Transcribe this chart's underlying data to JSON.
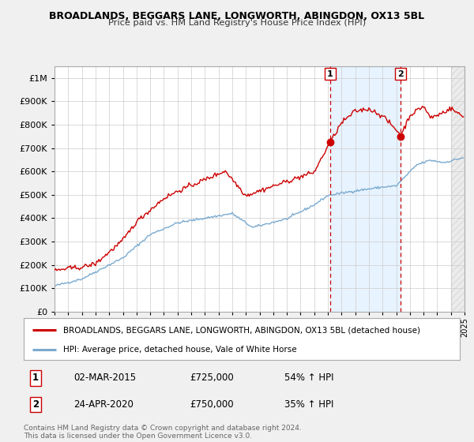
{
  "title": "BROADLANDS, BEGGARS LANE, LONGWORTH, ABINGDON, OX13 5BL",
  "subtitle": "Price paid vs. HM Land Registry's House Price Index (HPI)",
  "legend_line1": "BROADLANDS, BEGGARS LANE, LONGWORTH, ABINGDON, OX13 5BL (detached house)",
  "legend_line2": "HPI: Average price, detached house, Vale of White Horse",
  "sale1_date": "02-MAR-2015",
  "sale1_price": "£725,000",
  "sale1_hpi": "54% ↑ HPI",
  "sale1_year": 2015.17,
  "sale1_value": 725000,
  "sale2_date": "24-APR-2020",
  "sale2_price": "£750,000",
  "sale2_hpi": "35% ↑ HPI",
  "sale2_year": 2020.31,
  "sale2_value": 750000,
  "footer_line1": "Contains HM Land Registry data © Crown copyright and database right 2024.",
  "footer_line2": "This data is licensed under the Open Government Licence v3.0.",
  "red_line_color": "#cc0000",
  "blue_line_color": "#7aaad0",
  "shade_color": "#ddeeff",
  "background_color": "#f0f0f0",
  "plot_bg_color": "#ffffff",
  "grid_color": "#cccccc",
  "ylim_max": 1050000,
  "ylim_min": 0,
  "xmin": 1995,
  "xmax": 2025
}
